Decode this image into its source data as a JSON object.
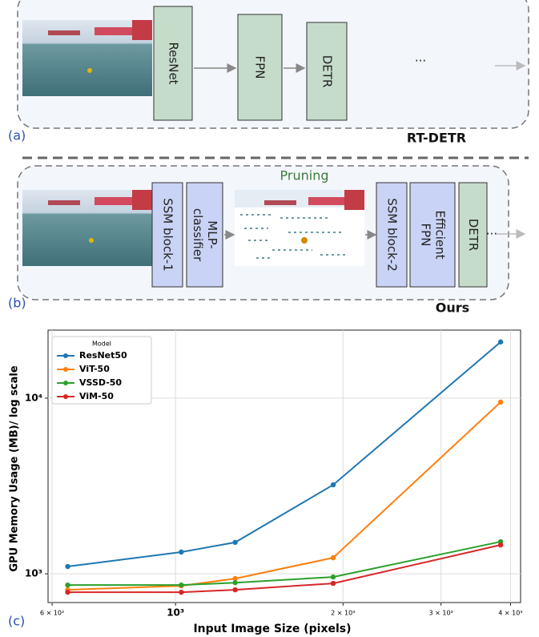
{
  "panel_a": {
    "label": "(a)",
    "title": "RT-DETR",
    "blocks": [
      "ResNet",
      "FPN",
      "DETR"
    ],
    "ellipsis": "..."
  },
  "panel_b": {
    "label": "(b)",
    "title": "Ours",
    "pruning": "Pruning",
    "blocks": [
      [
        "SSM block-1"
      ],
      [
        "MLP-",
        "classifier"
      ],
      [
        "SSM block-2"
      ],
      [
        "Efficient",
        "FPN"
      ],
      [
        "DETR"
      ]
    ],
    "ellipsis": "..."
  },
  "panel_c": {
    "label": "(c)"
  },
  "chart_data": {
    "type": "line",
    "x_label": "Input Image Size (pixels)",
    "y_label": "GPU Memory Usage (MB)/ log scale",
    "legend_title": "Model",
    "legend": "upper left",
    "log_x": true,
    "log_y": true,
    "grid": true,
    "x": [
      640,
      1024,
      1280,
      1920,
      3840
    ],
    "series": [
      {
        "name": "ResNet50",
        "color": "#1f77b4",
        "values": [
          1100,
          1330,
          1510,
          3210,
          20900
        ]
      },
      {
        "name": "ViT-50",
        "color": "#ff7f0e",
        "values": [
          811,
          854,
          939,
          1234,
          9500
        ]
      },
      {
        "name": "VSSD-50",
        "color": "#2ca02c",
        "values": [
          863,
          863,
          890,
          959,
          1523
        ]
      },
      {
        "name": "ViM-50",
        "color": "#d62728",
        "values": [
          785,
          785,
          811,
          882,
          1460
        ]
      }
    ],
    "xlim": [
      590,
      4170
    ],
    "ylim": [
      686,
      24400
    ],
    "xticks": [
      {
        "value": 600,
        "label": "6 × 10²"
      },
      {
        "value": 1000,
        "label": "10³"
      },
      {
        "value": 2000,
        "label": "2 × 10³"
      },
      {
        "value": 3000,
        "label": "3 × 10³"
      },
      {
        "value": 4000,
        "label": "4 × 10³"
      }
    ],
    "yticks": [
      {
        "value": 1000,
        "label": "10³"
      },
      {
        "value": 10000,
        "label": "10⁴"
      }
    ]
  }
}
